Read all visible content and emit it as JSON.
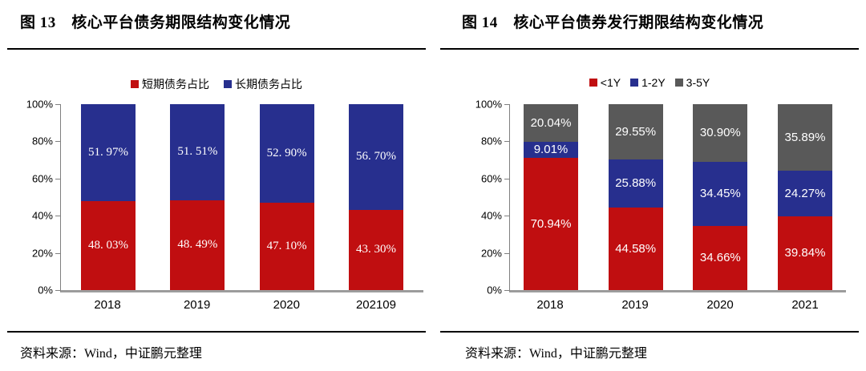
{
  "chart_data": [
    {
      "id": "fig13",
      "type": "bar",
      "stacked": true,
      "title": "图 13　核心平台债务期限结构变化情况",
      "source": "资料来源：Wind，中证鹏元整理",
      "categories": [
        "2018",
        "2019",
        "2020",
        "202109"
      ],
      "series": [
        {
          "name": "短期债务占比",
          "color": "#c00e10",
          "values": [
            48.03,
            48.49,
            47.1,
            43.3
          ],
          "labels": [
            "48. 03%",
            "48. 49%",
            "47. 10%",
            "43. 30%"
          ]
        },
        {
          "name": "长期债务占比",
          "color": "#272f8e",
          "values": [
            51.97,
            51.51,
            52.9,
            56.7
          ],
          "labels": [
            "51. 97%",
            "51. 51%",
            "52. 90%",
            "56. 70%"
          ]
        }
      ],
      "ylim": [
        0,
        100
      ],
      "yticks": [
        "0%",
        "20%",
        "40%",
        "60%",
        "80%",
        "100%"
      ],
      "legend_position": "top",
      "grid": false,
      "label_font": "serif",
      "xlabel": "",
      "ylabel": ""
    },
    {
      "id": "fig14",
      "type": "bar",
      "stacked": true,
      "title": "图 14　核心平台债券发行期限结构变化情况",
      "source": "资料来源：Wind，中证鹏元整理",
      "categories": [
        "2018",
        "2019",
        "2020",
        "2021"
      ],
      "series": [
        {
          "name": "<1Y",
          "color": "#c00e10",
          "values": [
            70.94,
            44.58,
            34.66,
            39.84
          ],
          "labels": [
            "70.94%",
            "44.58%",
            "34.66%",
            "39.84%"
          ]
        },
        {
          "name": "1-2Y",
          "color": "#272f8e",
          "values": [
            9.01,
            25.88,
            34.45,
            24.27
          ],
          "labels": [
            "9.01%",
            "25.88%",
            "34.45%",
            "24.27%"
          ]
        },
        {
          "name": "3-5Y",
          "color": "#595959",
          "values": [
            20.04,
            29.55,
            30.9,
            35.89
          ],
          "labels": [
            "20.04%",
            "29.55%",
            "30.90%",
            "35.89%"
          ]
        }
      ],
      "ylim": [
        0,
        100
      ],
      "yticks": [
        "0%",
        "20%",
        "40%",
        "60%",
        "80%",
        "100%"
      ],
      "legend_position": "top",
      "grid": false,
      "label_font": "sans",
      "xlabel": "",
      "ylabel": ""
    }
  ]
}
